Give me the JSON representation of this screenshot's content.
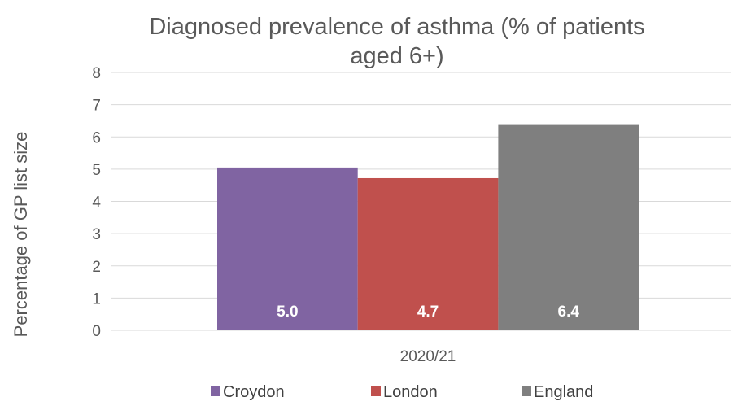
{
  "chart_data": {
    "type": "bar",
    "title_lines": [
      "Diagnosed prevalence of asthma (% of patients",
      "aged 6+)"
    ],
    "xlabel": "",
    "ylabel": "Percentage of GP list size",
    "categories": [
      "2020/21"
    ],
    "series": [
      {
        "name": "Croydon",
        "values": [
          5.05
        ],
        "label": "5.0",
        "color": "#8064a2"
      },
      {
        "name": "London",
        "values": [
          4.72
        ],
        "label": "4.7",
        "color": "#c0504d"
      },
      {
        "name": "England",
        "values": [
          6.37
        ],
        "label": "6.4",
        "color": "#7f7f7f"
      }
    ],
    "ylim": [
      0,
      8
    ],
    "yticks": [
      "0",
      "1",
      "2",
      "3",
      "4",
      "5",
      "6",
      "7",
      "8"
    ],
    "grid": true,
    "legend_position": "bottom"
  }
}
